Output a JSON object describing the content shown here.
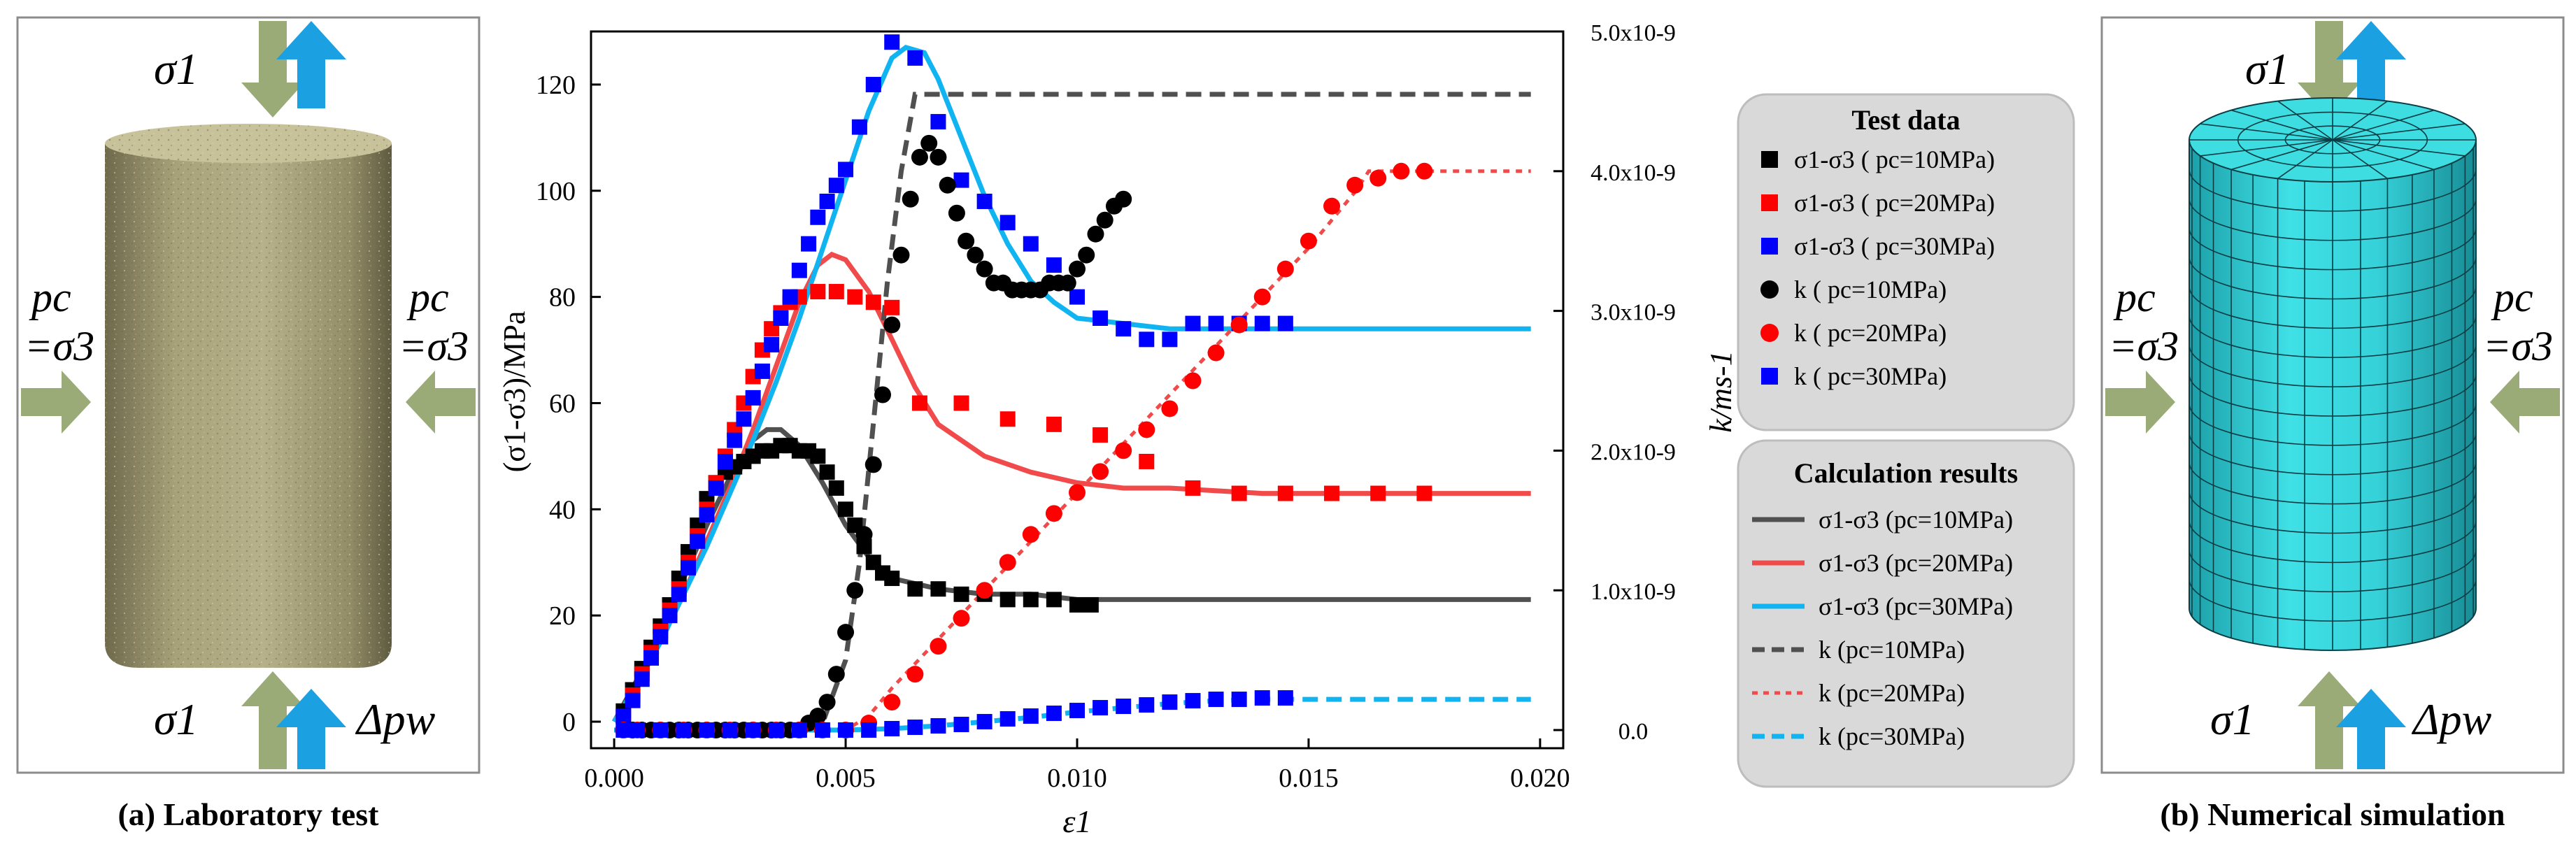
{
  "panel_a": {
    "caption": "(a) Laboratory test",
    "labels": {
      "sigma1_top": "σ1",
      "sigma1_bottom": "σ1",
      "delta_pw": "Δpw",
      "pc_left": "pc",
      "eq_sigma3_left": "=σ3",
      "pc_right": "pc",
      "eq_sigma3_right": "=σ3"
    },
    "specimen": "photo of cylindrical rock specimen"
  },
  "panel_b": {
    "caption": "(b) Numerical simulation",
    "labels": {
      "sigma1_top": "σ1",
      "sigma1_bottom": "σ1",
      "delta_pw": "Δpw",
      "pc_left": "pc",
      "eq_sigma3_left": "=σ3",
      "pc_right": "pc",
      "eq_sigma3_right": "=σ3"
    },
    "specimen": "meshed cylinder model"
  },
  "colors": {
    "arrow_olive": "#9aab78",
    "arrow_blue": "#1ba1e2",
    "series_black": "#000000",
    "series_red": "#ff0000",
    "series_blue": "#0000ff",
    "calc_dark": "#505050",
    "calc_red": "#f04a4a",
    "calc_cyan": "#10b4f0",
    "legend_bg": "#d9d9d9",
    "mesh_fill": "#34d5dc"
  },
  "legend_test": {
    "title": "Test data",
    "items": [
      {
        "marker": "square",
        "color": "#000000",
        "label": "σ1-σ3 ( pc=10MPa)"
      },
      {
        "marker": "square",
        "color": "#ff0000",
        "label": "σ1-σ3 ( pc=20MPa)"
      },
      {
        "marker": "square",
        "color": "#0000ff",
        "label": "σ1-σ3 ( pc=30MPa)"
      },
      {
        "marker": "circle",
        "color": "#000000",
        "label": "k ( pc=10MPa)"
      },
      {
        "marker": "circle",
        "color": "#ff0000",
        "label": "k ( pc=20MPa)"
      },
      {
        "marker": "square",
        "color": "#0000ff",
        "label": "k ( pc=30MPa)"
      }
    ]
  },
  "legend_calc": {
    "title": "Calculation results",
    "items": [
      {
        "line": "solid",
        "color": "#505050",
        "label": "σ1-σ3 (pc=10MPa)"
      },
      {
        "line": "solid",
        "color": "#f04a4a",
        "label": "σ1-σ3 (pc=20MPa)"
      },
      {
        "line": "solid",
        "color": "#10b4f0",
        "label": "σ1-σ3 (pc=30MPa)"
      },
      {
        "line": "dash",
        "color": "#505050",
        "label": "k (pc=10MPa)"
      },
      {
        "line": "dot",
        "color": "#f04a4a",
        "label": "k (pc=20MPa)"
      },
      {
        "line": "dash",
        "color": "#10b4f0",
        "label": "k (pc=30MPa)"
      }
    ]
  },
  "chart_data": {
    "type": "scatter",
    "title": "",
    "xlabel": "ε1",
    "ylabel": "(σ1-σ3)/MPa",
    "y2label": "k/ms-1",
    "xlim": [
      -0.0005,
      0.0205
    ],
    "ylim": [
      -5,
      130
    ],
    "y2lim": [
      -1.3e-10,
      5e-09
    ],
    "xticks": [
      "0.000",
      "0.005",
      "0.010",
      "0.015",
      "0.020"
    ],
    "xtick_values": [
      0,
      0.005,
      0.01,
      0.015,
      0.02
    ],
    "yticks": [
      "0",
      "20",
      "40",
      "60",
      "80",
      "100",
      "120"
    ],
    "ytick_values": [
      0,
      20,
      40,
      60,
      80,
      100,
      120
    ],
    "y2ticks": [
      "0.0",
      "1.0x10-9",
      "2.0x10-9",
      "3.0x10-9",
      "4.0x10-9",
      "5.0x10-9"
    ],
    "y2tick_values": [
      0,
      1e-09,
      2e-09,
      3e-09,
      4e-09,
      5e-09
    ],
    "grid": false,
    "test_data": [
      {
        "name": "σ1-σ3 ( pc=10MPa)",
        "marker": "square",
        "color": "#000000",
        "axis": "left",
        "x": [
          0.0002,
          0.0004,
          0.0006,
          0.0008,
          0.001,
          0.0012,
          0.0014,
          0.0016,
          0.0018,
          0.002,
          0.0022,
          0.0024,
          0.0026,
          0.0028,
          0.003,
          0.0032,
          0.0034,
          0.0036,
          0.0038,
          0.004,
          0.0042,
          0.0044,
          0.0046,
          0.0048,
          0.005,
          0.0052,
          0.0054,
          0.0056,
          0.0058,
          0.006,
          0.0065,
          0.007,
          0.0075,
          0.008,
          0.0085,
          0.009,
          0.0095,
          0.01,
          0.0103
        ],
        "y": [
          2,
          6,
          10,
          14,
          18,
          22,
          27,
          32,
          37,
          42,
          45,
          47,
          48,
          49,
          50,
          51,
          51,
          52,
          52,
          51,
          51,
          50,
          47,
          44,
          40,
          37,
          33,
          30,
          28,
          27,
          25,
          25,
          24,
          24,
          23,
          23,
          23,
          22,
          22
        ]
      },
      {
        "name": "σ1-σ3 ( pc=20MPa)",
        "marker": "square",
        "color": "#ff0000",
        "axis": "left",
        "x": [
          0.0002,
          0.0004,
          0.0006,
          0.0008,
          0.001,
          0.0012,
          0.0014,
          0.0016,
          0.0018,
          0.002,
          0.0022,
          0.0024,
          0.0026,
          0.0028,
          0.003,
          0.0032,
          0.0034,
          0.0036,
          0.0038,
          0.004,
          0.0044,
          0.0048,
          0.0052,
          0.0056,
          0.006,
          0.0066,
          0.0075,
          0.0085,
          0.0095,
          0.0105,
          0.0115,
          0.0125,
          0.0135,
          0.0145,
          0.0155,
          0.0165,
          0.0175
        ],
        "y": [
          1,
          5,
          9,
          13,
          17,
          21,
          25,
          30,
          35,
          40,
          45,
          50,
          55,
          60,
          65,
          70,
          74,
          77,
          79,
          80,
          81,
          81,
          80,
          79,
          78,
          60,
          60,
          57,
          56,
          54,
          49,
          44,
          43,
          43,
          43,
          43,
          43
        ]
      },
      {
        "name": "σ1-σ3 ( pc=30MPa)",
        "marker": "square",
        "color": "#0000ff",
        "axis": "left",
        "x": [
          0.0002,
          0.0004,
          0.0006,
          0.0008,
          0.001,
          0.0012,
          0.0014,
          0.0016,
          0.0018,
          0.002,
          0.0022,
          0.0024,
          0.0026,
          0.0028,
          0.003,
          0.0032,
          0.0034,
          0.0036,
          0.0038,
          0.004,
          0.0042,
          0.0044,
          0.0046,
          0.0048,
          0.005,
          0.0053,
          0.0056,
          0.006,
          0.0065,
          0.007,
          0.0075,
          0.008,
          0.0085,
          0.009,
          0.0095,
          0.01,
          0.0105,
          0.011,
          0.0115,
          0.012,
          0.0125,
          0.013,
          0.0135,
          0.014,
          0.0145
        ],
        "y": [
          1,
          4,
          8,
          12,
          16,
          20,
          24,
          29,
          34,
          39,
          44,
          49,
          53,
          57,
          61,
          66,
          71,
          76,
          80,
          85,
          90,
          95,
          98,
          101,
          104,
          112,
          120,
          128,
          125,
          113,
          102,
          98,
          94,
          90,
          86,
          80,
          76,
          74,
          72,
          72,
          75,
          75,
          75,
          75,
          75
        ]
      },
      {
        "name": "k ( pc=10MPa)",
        "marker": "circle",
        "color": "#000000",
        "axis": "right",
        "x": [
          0.0002,
          0.0004,
          0.0006,
          0.0008,
          0.001,
          0.0012,
          0.0014,
          0.0016,
          0.0018,
          0.002,
          0.0022,
          0.0024,
          0.0026,
          0.0028,
          0.003,
          0.0032,
          0.0034,
          0.0036,
          0.0038,
          0.004,
          0.0042,
          0.0044,
          0.0046,
          0.0048,
          0.005,
          0.0052,
          0.0054,
          0.0056,
          0.0058,
          0.006,
          0.0062,
          0.0064,
          0.0066,
          0.0068,
          0.007,
          0.0072,
          0.0074,
          0.0076,
          0.0078,
          0.008,
          0.0082,
          0.0084,
          0.0086,
          0.0088,
          0.009,
          0.0092,
          0.0094,
          0.0096,
          0.0098,
          0.01,
          0.0102,
          0.0104,
          0.0106,
          0.0108,
          0.011
        ],
        "y": [
          0,
          0,
          0,
          0,
          0,
          0,
          0,
          0,
          0,
          0,
          0,
          0,
          0,
          0,
          0,
          0,
          0,
          0,
          0,
          0,
          5e-11,
          1e-10,
          2e-10,
          4e-10,
          7e-10,
          1e-09,
          1.4e-09,
          1.9e-09,
          2.4e-09,
          2.9e-09,
          3.4e-09,
          3.8e-09,
          4.1e-09,
          4.2e-09,
          4.1e-09,
          3.9e-09,
          3.7e-09,
          3.5e-09,
          3.4e-09,
          3.3e-09,
          3.2e-09,
          3.2e-09,
          3.15e-09,
          3.15e-09,
          3.15e-09,
          3.15e-09,
          3.2e-09,
          3.2e-09,
          3.2e-09,
          3.3e-09,
          3.4e-09,
          3.55e-09,
          3.65e-09,
          3.75e-09,
          3.8e-09
        ]
      },
      {
        "name": "k ( pc=20MPa)",
        "marker": "circle",
        "color": "#ff0000",
        "axis": "right",
        "x": [
          0.0002,
          0.0005,
          0.001,
          0.0015,
          0.002,
          0.0025,
          0.003,
          0.0035,
          0.004,
          0.0045,
          0.005,
          0.0055,
          0.006,
          0.0065,
          0.007,
          0.0075,
          0.008,
          0.0085,
          0.009,
          0.0095,
          0.01,
          0.0105,
          0.011,
          0.0115,
          0.012,
          0.0125,
          0.013,
          0.0135,
          0.014,
          0.0145,
          0.015,
          0.0155,
          0.016,
          0.0165,
          0.017,
          0.0175
        ],
        "y": [
          0,
          0,
          0,
          0,
          0,
          0,
          0,
          0,
          0,
          0,
          0,
          5e-11,
          2e-10,
          4e-10,
          6e-10,
          8e-10,
          1e-09,
          1.2e-09,
          1.4e-09,
          1.55e-09,
          1.7e-09,
          1.85e-09,
          2e-09,
          2.15e-09,
          2.3e-09,
          2.5e-09,
          2.7e-09,
          2.9e-09,
          3.1e-09,
          3.3e-09,
          3.5e-09,
          3.75e-09,
          3.9e-09,
          3.95e-09,
          4e-09,
          4e-09
        ]
      },
      {
        "name": "k ( pc=30MPa)",
        "marker": "square",
        "color": "#0000ff",
        "axis": "right",
        "x": [
          0.0002,
          0.0005,
          0.001,
          0.0015,
          0.002,
          0.0025,
          0.003,
          0.0035,
          0.004,
          0.0045,
          0.005,
          0.0055,
          0.006,
          0.0065,
          0.007,
          0.0075,
          0.008,
          0.0085,
          0.009,
          0.0095,
          0.01,
          0.0105,
          0.011,
          0.0115,
          0.012,
          0.0125,
          0.013,
          0.0135,
          0.014,
          0.0145
        ],
        "y": [
          0,
          0,
          0,
          0,
          0,
          0,
          0,
          0,
          0,
          0,
          0,
          0,
          1e-11,
          2e-11,
          3e-11,
          4e-11,
          6e-11,
          8e-11,
          1e-10,
          1.2e-10,
          1.4e-10,
          1.6e-10,
          1.7e-10,
          1.8e-10,
          2e-10,
          2.1e-10,
          2.2e-10,
          2.2e-10,
          2.3e-10,
          2.3e-10
        ]
      }
    ],
    "calc_results": [
      {
        "name": "σ1-σ3 (pc=10MPa)",
        "line": "solid",
        "color": "#505050",
        "axis": "left",
        "x": [
          0,
          0.0005,
          0.001,
          0.0015,
          0.002,
          0.0025,
          0.003,
          0.0033,
          0.0036,
          0.004,
          0.0045,
          0.005,
          0.0055,
          0.006,
          0.007,
          0.008,
          0.009,
          0.01,
          0.012,
          0.014,
          0.016,
          0.018,
          0.0198
        ],
        "y": [
          0,
          8,
          17,
          27,
          37,
          46,
          53,
          55,
          55,
          52,
          45,
          37,
          31,
          27,
          25,
          24,
          24,
          23,
          23,
          23,
          23,
          23,
          23
        ]
      },
      {
        "name": "σ1-σ3 (pc=20MPa)",
        "line": "solid",
        "color": "#f04a4a",
        "axis": "left",
        "x": [
          0,
          0.0005,
          0.001,
          0.0015,
          0.002,
          0.0025,
          0.003,
          0.0035,
          0.004,
          0.0044,
          0.0047,
          0.005,
          0.0055,
          0.006,
          0.0065,
          0.007,
          0.008,
          0.009,
          0.01,
          0.011,
          0.012,
          0.014,
          0.016,
          0.018,
          0.0198
        ],
        "y": [
          0,
          7,
          15,
          24,
          34,
          44,
          55,
          67,
          79,
          86,
          88,
          87,
          81,
          72,
          63,
          56,
          50,
          47,
          45,
          44,
          44,
          43,
          43,
          43,
          43
        ]
      },
      {
        "name": "σ1-σ3 (pc=30MPa)",
        "line": "solid",
        "color": "#10b4f0",
        "axis": "left",
        "x": [
          0,
          0.0005,
          0.001,
          0.0015,
          0.002,
          0.0025,
          0.003,
          0.0035,
          0.004,
          0.0045,
          0.005,
          0.0055,
          0.006,
          0.0063,
          0.0067,
          0.007,
          0.0075,
          0.008,
          0.0085,
          0.009,
          0.0095,
          0.01,
          0.011,
          0.012,
          0.014,
          0.016,
          0.018,
          0.0198
        ],
        "y": [
          0,
          7,
          15,
          24,
          33,
          43,
          53,
          64,
          76,
          89,
          102,
          115,
          125,
          127,
          126,
          121,
          110,
          99,
          90,
          83,
          79,
          76,
          75,
          74,
          74,
          74,
          74,
          74
        ]
      },
      {
        "name": "k (pc=10MPa)",
        "line": "dash",
        "color": "#505050",
        "axis": "right",
        "x": [
          0,
          0.001,
          0.002,
          0.003,
          0.004,
          0.0045,
          0.005,
          0.0053,
          0.0056,
          0.0059,
          0.0062,
          0.0065,
          0.007,
          0.008,
          0.01,
          0.012,
          0.014,
          0.016,
          0.018,
          0.0198
        ],
        "y": [
          0,
          0,
          0,
          0,
          0,
          5e-11,
          5e-10,
          1.2e-09,
          2.2e-09,
          3.2e-09,
          4e-09,
          4.55e-09,
          4.55e-09,
          4.55e-09,
          4.55e-09,
          4.55e-09,
          4.55e-09,
          4.55e-09,
          4.55e-09,
          4.55e-09
        ]
      },
      {
        "name": "k (pc=20MPa)",
        "line": "dot",
        "color": "#f04a4a",
        "axis": "right",
        "x": [
          0,
          0.001,
          0.002,
          0.003,
          0.004,
          0.005,
          0.0055,
          0.006,
          0.007,
          0.008,
          0.009,
          0.01,
          0.011,
          0.012,
          0.013,
          0.014,
          0.015,
          0.016,
          0.0163,
          0.017,
          0.018,
          0.0198
        ],
        "y": [
          0,
          0,
          0,
          0,
          0,
          0,
          1e-10,
          3e-10,
          6.5e-10,
          1e-09,
          1.35e-09,
          1.7e-09,
          2.05e-09,
          2.4e-09,
          2.75e-09,
          3.1e-09,
          3.45e-09,
          3.85e-09,
          4e-09,
          4e-09,
          4e-09,
          4e-09
        ]
      },
      {
        "name": "k (pc=30MPa)",
        "line": "dash",
        "color": "#10b4f0",
        "axis": "right",
        "x": [
          0,
          0.001,
          0.002,
          0.003,
          0.004,
          0.005,
          0.006,
          0.007,
          0.008,
          0.009,
          0.01,
          0.011,
          0.012,
          0.013,
          0.014,
          0.015,
          0.016,
          0.018,
          0.0198
        ],
        "y": [
          0,
          0,
          0,
          0,
          0,
          0,
          1e-11,
          3e-11,
          6e-11,
          9e-11,
          1.3e-10,
          1.6e-10,
          1.9e-10,
          2.1e-10,
          2.2e-10,
          2.2e-10,
          2.2e-10,
          2.2e-10,
          2.2e-10
        ]
      }
    ]
  }
}
